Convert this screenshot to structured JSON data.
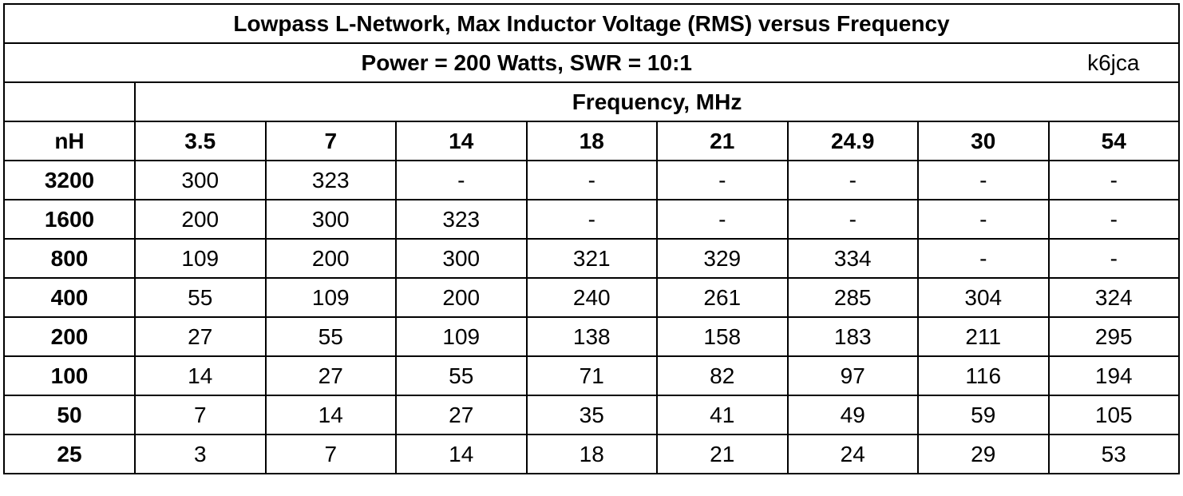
{
  "table": {
    "title": "Lowpass L-Network, Max Inductor Voltage (RMS) versus Frequency",
    "subtitle": "Power = 200 Watts, SWR = 10:1",
    "author": "k6jca",
    "group_header": "Frequency, MHz",
    "columns": [
      "nH",
      "3.5",
      "7",
      "14",
      "18",
      "21",
      "24.9",
      "30",
      "54"
    ],
    "rows": [
      [
        3200,
        300,
        323,
        "-",
        "-",
        "-",
        "-",
        "-",
        "-"
      ],
      [
        1600,
        200,
        300,
        323,
        "-",
        "-",
        "-",
        "-",
        "-"
      ],
      [
        800,
        109,
        200,
        300,
        321,
        329,
        334,
        "-",
        "-"
      ],
      [
        400,
        55,
        109,
        200,
        240,
        261,
        285,
        304,
        324
      ],
      [
        200,
        27,
        55,
        109,
        138,
        158,
        183,
        211,
        295
      ],
      [
        100,
        14,
        27,
        55,
        71,
        82,
        97,
        116,
        194
      ],
      [
        50,
        7,
        14,
        27,
        35,
        41,
        49,
        59,
        105
      ],
      [
        25,
        3,
        7,
        14,
        18,
        21,
        24,
        29,
        53
      ]
    ]
  }
}
